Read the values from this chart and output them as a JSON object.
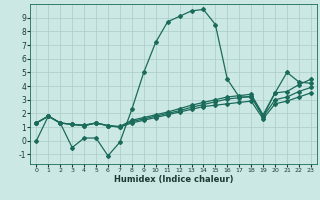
{
  "title": "",
  "xlabel": "Humidex (Indice chaleur)",
  "bg_color": "#cce8e4",
  "line_color": "#1a6b5a",
  "grid_color": "#aaccc8",
  "xlim": [
    -0.5,
    23.5
  ],
  "ylim": [
    -1.7,
    10.0
  ],
  "xticks": [
    0,
    1,
    2,
    3,
    4,
    5,
    6,
    7,
    8,
    9,
    10,
    11,
    12,
    13,
    14,
    15,
    16,
    17,
    18,
    19,
    20,
    21,
    22,
    23
  ],
  "yticks": [
    -1,
    0,
    1,
    2,
    3,
    4,
    5,
    6,
    7,
    8,
    9
  ],
  "curve1_x": [
    0,
    1,
    2,
    3,
    4,
    5,
    6,
    7,
    8,
    9,
    10,
    11,
    12,
    13,
    14,
    15,
    16,
    17,
    18,
    19,
    20,
    21,
    22,
    23
  ],
  "curve1_y": [
    0.0,
    1.8,
    1.3,
    -0.5,
    0.2,
    0.2,
    -1.1,
    -0.1,
    2.3,
    5.0,
    7.2,
    8.7,
    9.1,
    9.5,
    9.6,
    8.5,
    4.5,
    3.2,
    3.2,
    1.8,
    3.5,
    5.0,
    4.3,
    4.2
  ],
  "curve2_x": [
    0,
    1,
    2,
    3,
    4,
    5,
    6,
    7,
    8,
    9,
    10,
    11,
    12,
    13,
    14,
    15,
    16,
    17,
    18,
    19,
    20,
    21,
    22,
    23
  ],
  "curve2_y": [
    1.3,
    1.8,
    1.3,
    1.2,
    1.15,
    1.3,
    1.1,
    1.05,
    1.5,
    1.7,
    1.9,
    2.1,
    2.35,
    2.6,
    2.8,
    3.0,
    3.2,
    3.3,
    3.4,
    1.9,
    3.5,
    3.6,
    4.1,
    4.5
  ],
  "curve3_x": [
    0,
    1,
    2,
    3,
    4,
    5,
    6,
    7,
    8,
    9,
    10,
    11,
    12,
    13,
    14,
    15,
    16,
    17,
    18,
    19,
    20,
    21,
    22,
    23
  ],
  "curve3_y": [
    1.3,
    1.8,
    1.3,
    1.2,
    1.1,
    1.3,
    1.1,
    1.0,
    1.4,
    1.6,
    1.8,
    2.0,
    2.2,
    2.45,
    2.65,
    2.85,
    3.05,
    3.15,
    3.25,
    1.75,
    3.0,
    3.2,
    3.6,
    3.9
  ],
  "curve4_x": [
    0,
    1,
    2,
    3,
    4,
    5,
    6,
    7,
    8,
    9,
    10,
    11,
    12,
    13,
    14,
    15,
    16,
    17,
    18,
    19,
    20,
    21,
    22,
    23
  ],
  "curve4_y": [
    1.3,
    1.8,
    1.3,
    1.2,
    1.1,
    1.3,
    1.1,
    1.0,
    1.3,
    1.5,
    1.7,
    1.9,
    2.1,
    2.3,
    2.5,
    2.6,
    2.7,
    2.8,
    2.9,
    1.6,
    2.7,
    2.9,
    3.2,
    3.5
  ]
}
